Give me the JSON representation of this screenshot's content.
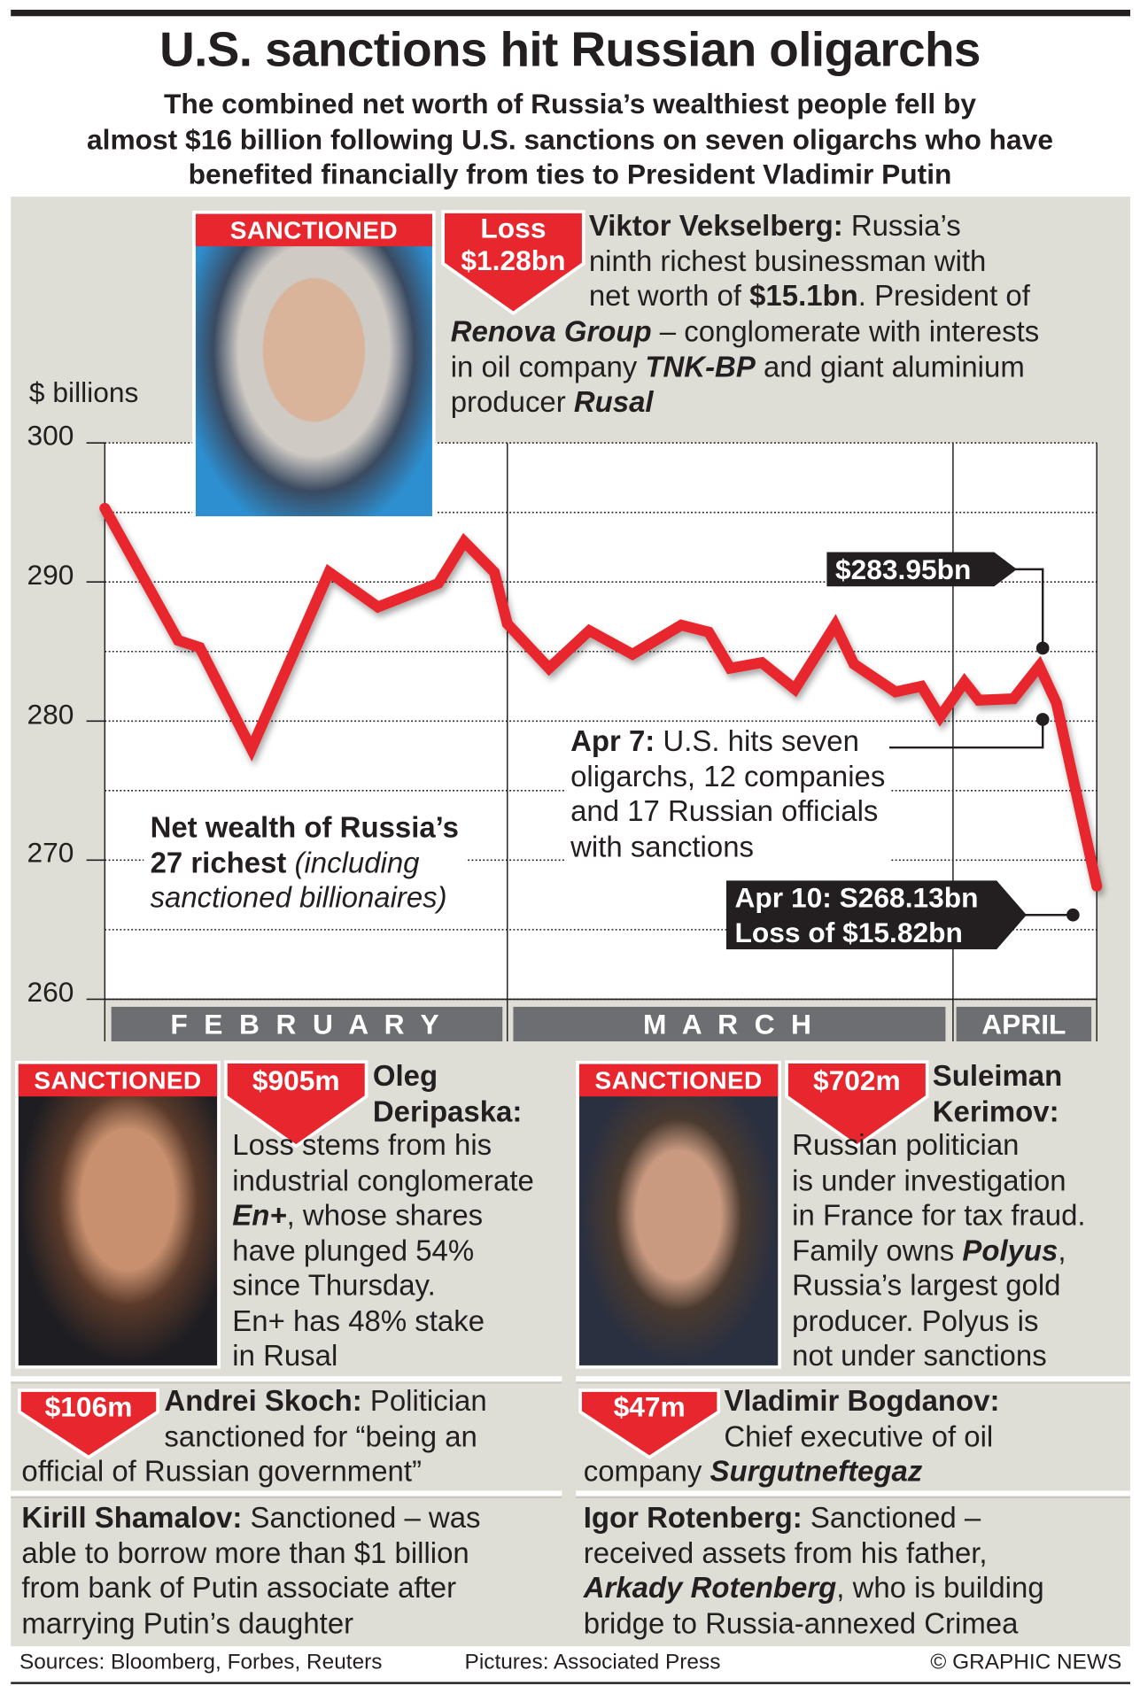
{
  "header": {
    "title": "U.S. sanctions hit Russian oligarchs",
    "subtitle": "The combined net worth of Russia’s wealthiest people fell by\nalmost $16 billion following U.S. sanctions on seven oligarchs who have\nbenefited financially from ties to President Vladimir Putin"
  },
  "colors": {
    "accent": "#e8262d",
    "dark": "#231f20",
    "panel": "#dfded6",
    "month_bar": "#6d6e71"
  },
  "sanctioned_label": "SANCTIONED",
  "vekselberg": {
    "badge_line1": "Loss",
    "badge_line2": "$1.28bn",
    "text_top": [
      {
        "t": "Viktor Vekselberg:",
        "s": "b"
      },
      {
        "t": " Russia’s\nninth richest businessman with\nnet worth of ",
        "s": "n"
      },
      {
        "t": "$15.1bn",
        "s": "b"
      },
      {
        "t": ". President of",
        "s": "n"
      }
    ],
    "text_bottom": [
      {
        "t": "Renova Group",
        "s": "bi"
      },
      {
        "t": " – conglomerate with interests\nin oil company ",
        "s": "n"
      },
      {
        "t": "TNK-BP",
        "s": "bi"
      },
      {
        "t": " and giant aluminium\nproducer ",
        "s": "n"
      },
      {
        "t": "Rusal",
        "s": "bi"
      }
    ]
  },
  "chart_data": {
    "type": "line",
    "title": "Net wealth of Russia’s 27 richest (including sanctioned billionaires)",
    "ylabel": "$ billions",
    "xlabel": "",
    "ylim": [
      260,
      300
    ],
    "yticks": [
      "300",
      "290",
      "280",
      "270",
      "260"
    ],
    "grid": true,
    "xlim_days_from_feb1": [
      0,
      69
    ],
    "month_labels": [
      "F E B R U A R Y",
      "M A R C H",
      "APRIL"
    ],
    "series": [
      {
        "name": "Net wealth",
        "x_days_from_feb1": [
          0,
          5.1,
          6.6,
          10.2,
          15.6,
          19.0,
          23.2,
          25.0,
          27.1,
          28.0,
          30.9,
          33.7,
          36.7,
          40.1,
          42.0,
          43.5,
          45.7,
          48.0,
          50.8,
          52.1,
          55.0,
          56.8,
          58.1,
          59.8,
          60.8,
          63.2,
          65.0,
          66.2,
          69.0
        ],
        "values": [
          295.3,
          285.8,
          285.3,
          278.0,
          290.7,
          288.2,
          289.9,
          292.9,
          290.7,
          287.0,
          283.8,
          286.5,
          284.8,
          286.9,
          286.4,
          283.8,
          284.2,
          282.3,
          286.9,
          284.1,
          282.1,
          282.5,
          280.3,
          282.8,
          281.5,
          281.6,
          283.95,
          281.3,
          268.13
        ]
      }
    ],
    "annotations": {
      "peak_label": "$283.95bn",
      "apr10_line1": "Apr 10: S268.13bn",
      "apr10_line2": "Loss of $15.82bn",
      "apr7": [
        {
          "t": "Apr 7:",
          "s": "b"
        },
        {
          "t": " U.S. hits seven\noligarchs, 12 companies\nand 17 Russian officials\nwith sanctions",
          "s": "n"
        }
      ],
      "series_label": [
        {
          "t": "Net wealth of Russia’s\n27 richest",
          "s": "b"
        },
        {
          "t": " (including\nsanctioned billionaires)",
          "s": "i"
        }
      ]
    }
  },
  "deripaska": {
    "badge": "$905m",
    "name": "Oleg\nDeripaska:",
    "text": [
      {
        "t": "Loss stems from his\nindustrial conglomerate\n",
        "s": "n"
      },
      {
        "t": "En+",
        "s": "bi"
      },
      {
        "t": ", whose shares\nhave plunged 54%\nsince Thursday.\nEn+ has 48% stake\nin Rusal",
        "s": "n"
      }
    ]
  },
  "kerimov": {
    "badge": "$702m",
    "name": "Suleiman\nKerimov:",
    "text": [
      {
        "t": "Russian politician\nis under investigation\nin France for tax fraud.\nFamily owns ",
        "s": "n"
      },
      {
        "t": "Polyus",
        "s": "bi"
      },
      {
        "t": ",\nRussia’s largest gold\nproducer. Polyus is\nnot under sanctions",
        "s": "n"
      }
    ]
  },
  "skoch": {
    "badge": "$106m",
    "text_top": [
      {
        "t": "Andrei Skoch:",
        "s": "b"
      },
      {
        "t": " Politician\nsanctioned for “being an",
        "s": "n"
      }
    ],
    "text_bottom": [
      {
        "t": "official of Russian government”",
        "s": "n"
      }
    ]
  },
  "bogdanov": {
    "badge": "$47m",
    "text_top": [
      {
        "t": "Vladimir Bogdanov:",
        "s": "b"
      },
      {
        "t": "\nChief executive of oil",
        "s": "n"
      }
    ],
    "text_bottom": [
      {
        "t": "company ",
        "s": "n"
      },
      {
        "t": "Surgutneftegaz",
        "s": "bi"
      }
    ]
  },
  "shamalov": {
    "text": [
      {
        "t": "Kirill Shamalov:",
        "s": "b"
      },
      {
        "t": " Sanctioned – was\nable to borrow more than $1 billion\nfrom bank of Putin associate after\nmarrying Putin’s daughter",
        "s": "n"
      }
    ]
  },
  "rotenberg": {
    "text": [
      {
        "t": "Igor Rotenberg:",
        "s": "b"
      },
      {
        "t": " Sanctioned –\nreceived assets from his father,\n",
        "s": "n"
      },
      {
        "t": "Arkady Rotenberg",
        "s": "bi"
      },
      {
        "t": ", who is building\nbridge to Russia-annexed Crimea",
        "s": "n"
      }
    ]
  },
  "footer": {
    "sources": "Sources: Bloomberg, Forbes, Reuters",
    "pictures": "Pictures: Associated Press",
    "copyright": "© GRAPHIC NEWS"
  }
}
